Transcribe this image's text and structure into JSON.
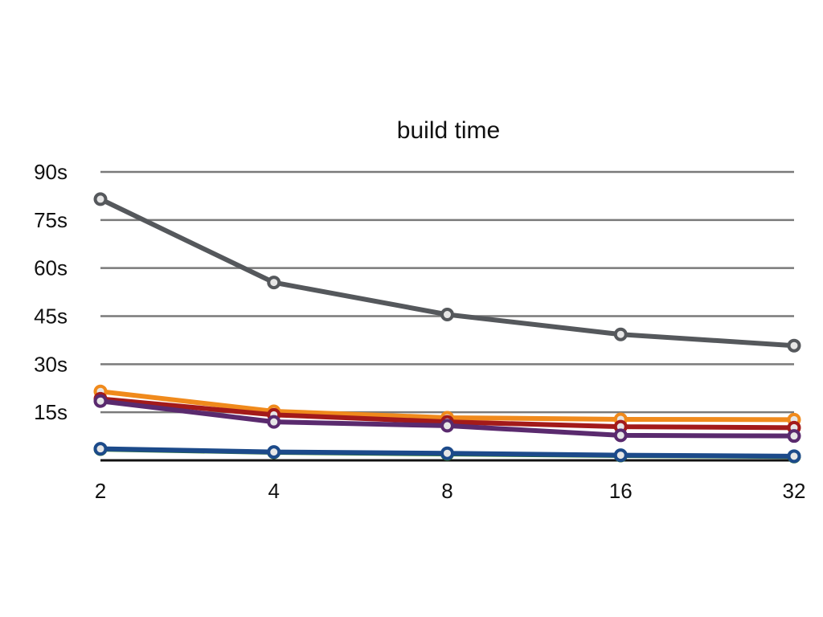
{
  "chart_data": {
    "type": "line",
    "title": "build time",
    "xlabel": "",
    "ylabel": "",
    "x": [
      2,
      4,
      8,
      16,
      32
    ],
    "x_tick_labels": [
      "2",
      "4",
      "8",
      "16",
      "32"
    ],
    "x_scale": "log2",
    "ylim": [
      0,
      90
    ],
    "y_ticks": [
      15,
      30,
      45,
      60,
      75,
      90
    ],
    "y_tick_labels": [
      "15s",
      "30s",
      "45s",
      "60s",
      "75s",
      "90s"
    ],
    "grid": true,
    "legend": "none",
    "series": [
      {
        "color": "#55585c",
        "values": [
          81.5,
          55.5,
          45.5,
          39.3,
          35.8
        ]
      },
      {
        "color": "#f08a1c",
        "values": [
          21.5,
          15.3,
          13.3,
          12.8,
          12.7
        ]
      },
      {
        "color": "#a31a1a",
        "values": [
          19.2,
          14.2,
          12.0,
          10.5,
          10.2
        ]
      },
      {
        "color": "#5a2a6e",
        "values": [
          18.5,
          12.0,
          10.8,
          7.8,
          7.6
        ]
      },
      {
        "color": "#2e7a2e",
        "values": [
          3.5,
          2.5,
          2.0,
          1.5,
          1.2
        ]
      },
      {
        "color": "#1c4a8a",
        "values": [
          3.6,
          2.6,
          2.2,
          1.6,
          1.3
        ]
      }
    ]
  }
}
